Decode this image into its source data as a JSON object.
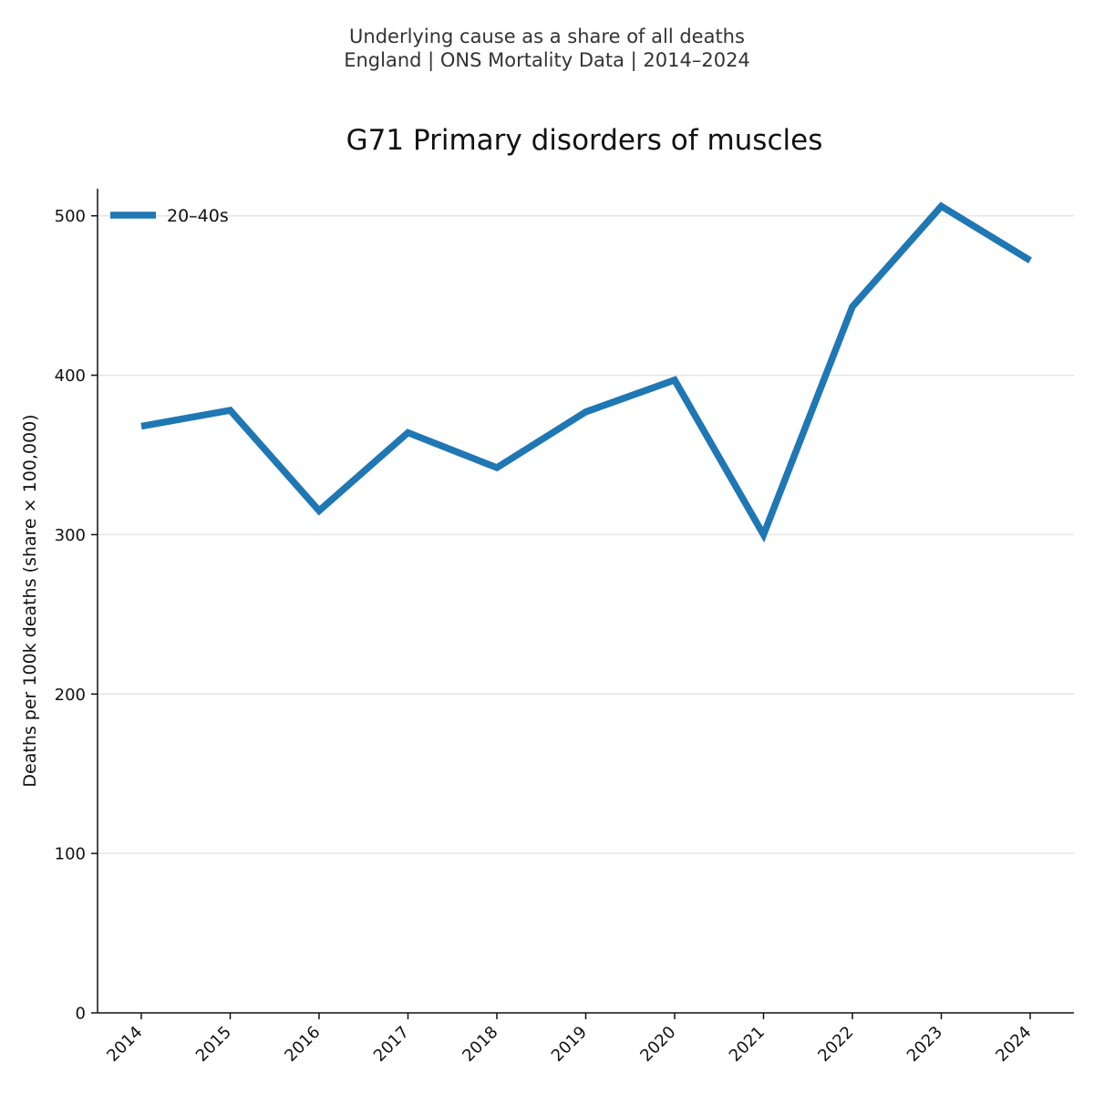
{
  "suptitle_line1": "Underlying cause as a share of all deaths",
  "suptitle_line2": "England | ONS Mortality Data | 2014–2024",
  "colors": {
    "series": "#1f77b4",
    "grid": "#e5e5e5",
    "axis": "#111111"
  },
  "chart_data": {
    "type": "line",
    "title": "G71 Primary disorders of muscles",
    "xlabel": "",
    "ylabel": "Deaths per 100k deaths (share × 100,000)",
    "x": [
      "2014",
      "2015",
      "2016",
      "2017",
      "2018",
      "2019",
      "2020",
      "2021",
      "2022",
      "2023",
      "2024"
    ],
    "series": [
      {
        "name": "20–40s",
        "values": [
          368,
          378,
          315,
          364,
          342,
          377,
          397,
          300,
          443,
          506,
          472
        ]
      }
    ],
    "yticks": [
      0,
      100,
      200,
      300,
      400,
      500
    ],
    "ylim": [
      0,
      517
    ],
    "grid": "horizontal",
    "legend": "top-left"
  }
}
